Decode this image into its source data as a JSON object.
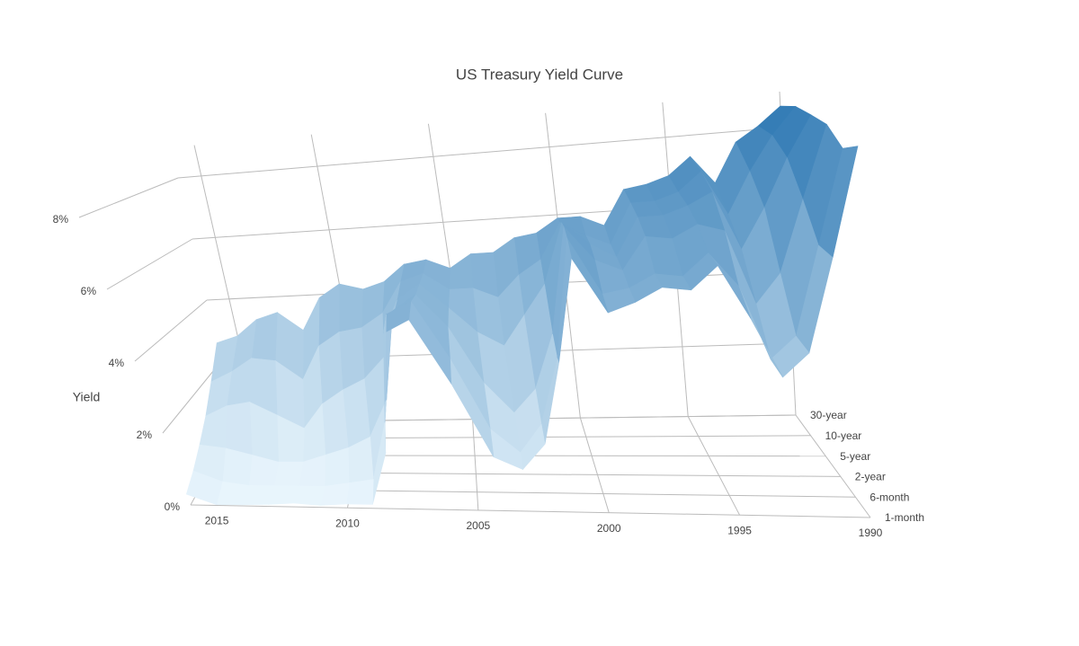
{
  "chart_data": {
    "type": "surface",
    "title": "US Treasury Yield Curve",
    "z_label": "Yield",
    "x": [
      1990,
      1991,
      1992,
      1993,
      1994,
      1995,
      1996,
      1997,
      1998,
      1999,
      2000,
      2001,
      2002,
      2003,
      2004,
      2005,
      2006,
      2007,
      2008,
      2009,
      2010,
      2011,
      2012,
      2013,
      2014,
      2015,
      2016
    ],
    "y": [
      "1-month",
      "6-month",
      "2-year",
      "5-year",
      "10-year",
      "30-year"
    ],
    "z": [
      [
        7.8,
        5.5,
        3.5,
        3.0,
        4.3,
        5.5,
        5.0,
        5.1,
        4.8,
        4.6,
        5.9,
        3.5,
        1.6,
        1.0,
        1.3,
        3.1,
        4.7,
        4.4,
        1.4,
        0.1,
        0.1,
        0.05,
        0.1,
        0.05,
        0.03,
        0.02,
        0.3
      ],
      [
        7.7,
        5.6,
        3.6,
        3.1,
        4.8,
        5.6,
        5.1,
        5.2,
        4.9,
        4.8,
        6.2,
        3.3,
        1.7,
        1.0,
        1.6,
        3.4,
        4.9,
        4.6,
        1.8,
        0.3,
        0.2,
        0.1,
        0.1,
        0.1,
        0.1,
        0.2,
        0.5
      ],
      [
        8.2,
        6.5,
        4.8,
        4.1,
        5.9,
        6.1,
        5.8,
        5.9,
        5.1,
        5.4,
        6.3,
        3.6,
        2.2,
        1.6,
        2.4,
        3.9,
        4.8,
        4.4,
        2.0,
        1.0,
        0.7,
        0.5,
        0.3,
        0.3,
        0.5,
        0.7,
        0.8
      ],
      [
        8.4,
        7.4,
        6.2,
        5.2,
        6.7,
        6.4,
        6.2,
        6.2,
        5.2,
        5.6,
        6.2,
        4.6,
        3.8,
        3.0,
        3.4,
        4.1,
        4.8,
        4.4,
        2.8,
        2.2,
        1.9,
        1.5,
        0.8,
        1.2,
        1.6,
        1.5,
        1.2
      ],
      [
        8.6,
        7.9,
        7.0,
        5.9,
        7.1,
        6.6,
        6.4,
        6.4,
        5.3,
        5.6,
        6.0,
        5.0,
        4.6,
        4.0,
        4.3,
        4.3,
        4.8,
        4.6,
        3.7,
        3.3,
        3.2,
        2.8,
        1.8,
        2.4,
        2.5,
        2.1,
        1.8
      ],
      [
        8.6,
        8.1,
        7.7,
        6.6,
        7.4,
        6.9,
        6.7,
        6.6,
        5.6,
        5.9,
        5.9,
        5.5,
        5.4,
        5.0,
        5.0,
        4.6,
        4.9,
        4.8,
        4.3,
        4.1,
        4.3,
        3.9,
        2.9,
        3.5,
        3.3,
        2.8,
        2.6
      ]
    ],
    "xlim": [
      1990,
      2016
    ],
    "xticks": [
      1990,
      1995,
      2000,
      2005,
      2010,
      2015
    ],
    "zlim": [
      0,
      9
    ],
    "zticks": [
      {
        "value": 0,
        "label": "0%"
      },
      {
        "value": 2,
        "label": "2%"
      },
      {
        "value": 4,
        "label": "4%"
      },
      {
        "value": 6,
        "label": "6%"
      },
      {
        "value": 8,
        "label": "8%"
      }
    ],
    "colorscale": [
      "#eaf6fd",
      "#2673b0"
    ],
    "grid": true
  }
}
